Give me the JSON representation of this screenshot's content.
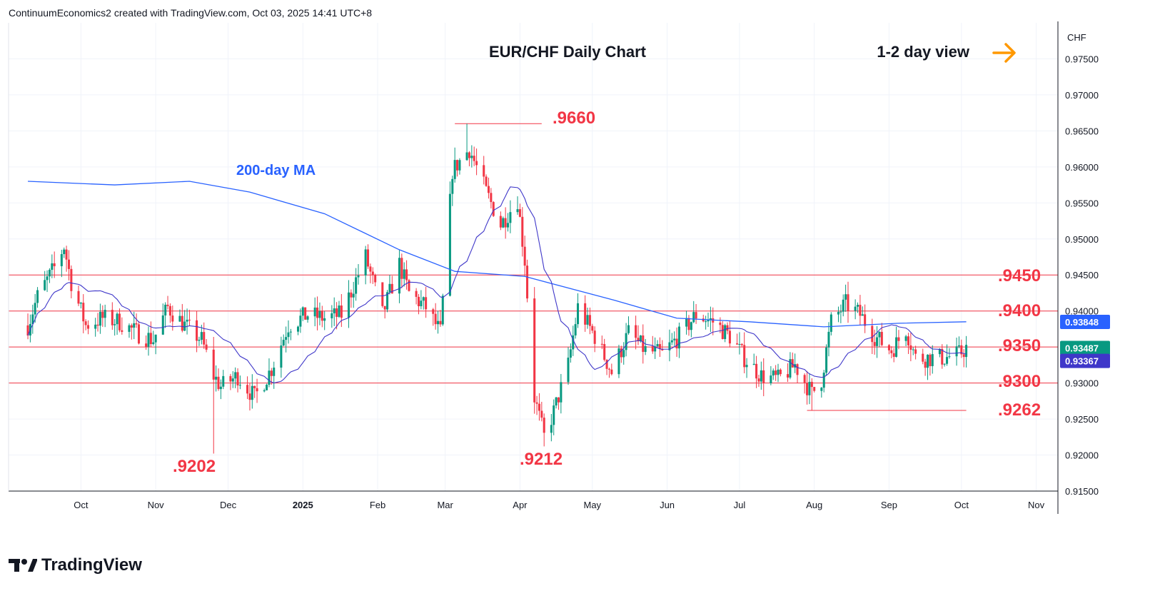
{
  "header": {
    "credit": "ContinuumEconomics2 created with TradingView.com, Oct 03, 2025 14:41 UTC+8"
  },
  "brand": {
    "name": "TradingView"
  },
  "annotations": {
    "title": "EUR/CHF Daily Chart",
    "view_label": "1-2 day view",
    "ma_label": "200-day MA",
    "high_label": ".9660",
    "low_label_1": ".9202",
    "low_label_2": ".9212",
    "level_9450": ".9450",
    "level_9400": ".9400",
    "level_9350": ".9350",
    "level_9300": ".9300",
    "level_9262": ".9262"
  },
  "colors": {
    "up": "#089981",
    "down": "#f23645",
    "level_line": "#f23645",
    "ma200": "#2962ff",
    "ma_short": "#3f37c9",
    "label_red": "#f23645",
    "arrow": "#ff9800",
    "grid": "#f0f3fa",
    "axis_text": "#131722"
  },
  "chart_data": {
    "type": "candlestick",
    "title": "EUR/CHF Daily Chart",
    "y_unit": "CHF",
    "ylim": [
      0.915,
      0.98
    ],
    "y_ticks": [
      "0.91500",
      "0.92000",
      "0.92500",
      "0.93000",
      "0.93500",
      "0.94000",
      "0.94500",
      "0.95000",
      "0.95500",
      "0.96000",
      "0.96500",
      "0.97000",
      "0.97500"
    ],
    "x_ticks": [
      "Oct",
      "Nov",
      "Dec",
      "2025",
      "Feb",
      "Mar",
      "Apr",
      "May",
      "Jun",
      "Jul",
      "Aug",
      "Sep",
      "Oct",
      "Nov"
    ],
    "horizontal_levels": [
      0.945,
      0.94,
      0.935,
      0.93
    ],
    "support_line": {
      "value": 0.9262,
      "from": "2025-07-29",
      "to": "2025-10-03"
    },
    "high_line": {
      "value": 0.966,
      "from": "2025-03-05",
      "to": "2025-04-10"
    },
    "price_badges": [
      {
        "label": "0.93848",
        "value": 0.93848,
        "color": "#2962ff"
      },
      {
        "label": "0.93487",
        "value": 0.93487,
        "color": "#089981"
      },
      {
        "label": "0.93367",
        "value": 0.93367,
        "color": "#3f37c9"
      }
    ],
    "anchors": [
      {
        "date": "2024-09-09",
        "close": 0.938
      },
      {
        "date": "2024-09-13",
        "close": 0.942
      },
      {
        "date": "2024-09-20",
        "close": 0.946
      },
      {
        "date": "2024-09-24",
        "close": 0.949
      },
      {
        "date": "2024-09-27",
        "close": 0.944
      },
      {
        "date": "2024-10-03",
        "close": 0.938
      },
      {
        "date": "2024-10-10",
        "close": 0.939
      },
      {
        "date": "2024-10-17",
        "close": 0.9385
      },
      {
        "date": "2024-10-24",
        "close": 0.937
      },
      {
        "date": "2024-10-31",
        "close": 0.936
      },
      {
        "date": "2024-11-06",
        "close": 0.9405
      },
      {
        "date": "2024-11-13",
        "close": 0.938
      },
      {
        "date": "2024-11-20",
        "close": 0.936
      },
      {
        "date": "2024-11-25",
        "close": 0.931
      },
      {
        "date": "2024-11-28",
        "close": 0.9295
      },
      {
        "date": "2024-12-05",
        "close": 0.931
      },
      {
        "date": "2024-12-12",
        "close": 0.928
      },
      {
        "date": "2024-12-19",
        "close": 0.932
      },
      {
        "date": "2024-12-26",
        "close": 0.938
      },
      {
        "date": "2025-01-03",
        "close": 0.9395
      },
      {
        "date": "2025-01-10",
        "close": 0.939
      },
      {
        "date": "2025-01-17",
        "close": 0.9395
      },
      {
        "date": "2025-01-22",
        "close": 0.9435
      },
      {
        "date": "2025-01-27",
        "close": 0.9475
      },
      {
        "date": "2025-02-03",
        "close": 0.9395
      },
      {
        "date": "2025-02-10",
        "close": 0.9465
      },
      {
        "date": "2025-02-14",
        "close": 0.9425
      },
      {
        "date": "2025-02-21",
        "close": 0.9405
      },
      {
        "date": "2025-02-27",
        "close": 0.937
      },
      {
        "date": "2025-03-04",
        "close": 0.9595
      },
      {
        "date": "2025-03-11",
        "close": 0.9625
      },
      {
        "date": "2025-03-18",
        "close": 0.9565
      },
      {
        "date": "2025-03-24",
        "close": 0.952
      },
      {
        "date": "2025-03-31",
        "close": 0.9555
      },
      {
        "date": "2025-04-03",
        "close": 0.947
      },
      {
        "date": "2025-04-07",
        "close": 0.928
      },
      {
        "date": "2025-04-11",
        "close": 0.9225
      },
      {
        "date": "2025-04-15",
        "close": 0.926
      },
      {
        "date": "2025-04-21",
        "close": 0.9325
      },
      {
        "date": "2025-04-25",
        "close": 0.9405
      },
      {
        "date": "2025-05-02",
        "close": 0.9365
      },
      {
        "date": "2025-05-09",
        "close": 0.9315
      },
      {
        "date": "2025-05-16",
        "close": 0.937
      },
      {
        "date": "2025-05-23",
        "close": 0.9345
      },
      {
        "date": "2025-05-30",
        "close": 0.934
      },
      {
        "date": "2025-06-06",
        "close": 0.9365
      },
      {
        "date": "2025-06-13",
        "close": 0.9395
      },
      {
        "date": "2025-06-20",
        "close": 0.9385
      },
      {
        "date": "2025-06-27",
        "close": 0.9365
      },
      {
        "date": "2025-07-03",
        "close": 0.9335
      },
      {
        "date": "2025-07-10",
        "close": 0.931
      },
      {
        "date": "2025-07-17",
        "close": 0.9305
      },
      {
        "date": "2025-07-24",
        "close": 0.9325
      },
      {
        "date": "2025-07-31",
        "close": 0.9285
      },
      {
        "date": "2025-08-04",
        "close": 0.9305
      },
      {
        "date": "2025-08-08",
        "close": 0.9385
      },
      {
        "date": "2025-08-14",
        "close": 0.941
      },
      {
        "date": "2025-08-20",
        "close": 0.9395
      },
      {
        "date": "2025-08-26",
        "close": 0.9365
      },
      {
        "date": "2025-09-02",
        "close": 0.9345
      },
      {
        "date": "2025-09-08",
        "close": 0.9375
      },
      {
        "date": "2025-09-12",
        "close": 0.9335
      },
      {
        "date": "2025-09-18",
        "close": 0.9335
      },
      {
        "date": "2025-09-24",
        "close": 0.9335
      },
      {
        "date": "2025-09-30",
        "close": 0.934
      },
      {
        "date": "2025-10-03",
        "close": 0.9349
      }
    ],
    "extremes": [
      {
        "date": "2024-11-25",
        "low": 0.9202
      },
      {
        "date": "2025-03-10",
        "high": 0.966
      },
      {
        "date": "2025-04-11",
        "low": 0.9212
      },
      {
        "date": "2025-07-31",
        "low": 0.9262
      }
    ],
    "ma200": [
      {
        "date": "2024-09-09",
        "value": 0.958
      },
      {
        "date": "2024-10-15",
        "value": 0.9575
      },
      {
        "date": "2024-11-15",
        "value": 0.958
      },
      {
        "date": "2024-12-10",
        "value": 0.9565
      },
      {
        "date": "2025-01-10",
        "value": 0.9535
      },
      {
        "date": "2025-02-10",
        "value": 0.9485
      },
      {
        "date": "2025-03-05",
        "value": 0.9455
      },
      {
        "date": "2025-04-03",
        "value": 0.9448
      },
      {
        "date": "2025-05-10",
        "value": 0.9415
      },
      {
        "date": "2025-06-05",
        "value": 0.939
      },
      {
        "date": "2025-07-05",
        "value": 0.9385
      },
      {
        "date": "2025-08-05",
        "value": 0.9378
      },
      {
        "date": "2025-09-05",
        "value": 0.9383
      },
      {
        "date": "2025-10-03",
        "value": 0.9385
      }
    ]
  }
}
